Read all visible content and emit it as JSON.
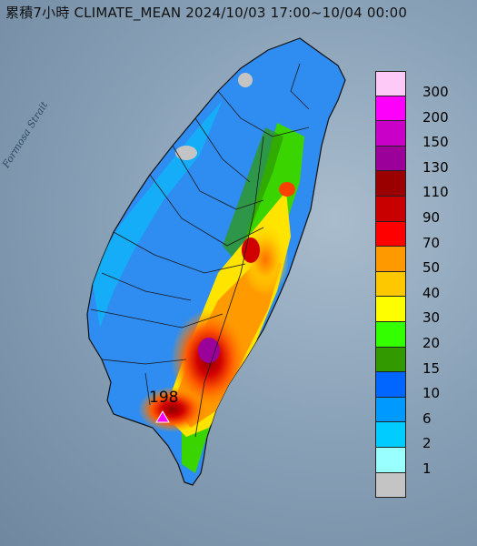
{
  "map": {
    "title": "累積7小時 CLIMATE_MEAN 2024/10/03 17:00~10/04 00:00",
    "strait_label": "Formosa Strait",
    "max_value": "198"
  },
  "legend": {
    "levels": [
      {
        "label": "300",
        "color": "#fdcaf7"
      },
      {
        "label": "200",
        "color": "#fc00fc"
      },
      {
        "label": "150",
        "color": "#c800c8"
      },
      {
        "label": "130",
        "color": "#9b009b"
      },
      {
        "label": "110",
        "color": "#9a0000"
      },
      {
        "label": "90",
        "color": "#c90000"
      },
      {
        "label": "70",
        "color": "#fe0000"
      },
      {
        "label": "50",
        "color": "#fe9900"
      },
      {
        "label": "40",
        "color": "#fec800"
      },
      {
        "label": "30",
        "color": "#fefe00"
      },
      {
        "label": "20",
        "color": "#33ff00"
      },
      {
        "label": "15",
        "color": "#339900"
      },
      {
        "label": "10",
        "color": "#0066ff"
      },
      {
        "label": "6",
        "color": "#0099ff"
      },
      {
        "label": "2",
        "color": "#00ccff"
      },
      {
        "label": "1",
        "color": "#99ffff"
      },
      {
        "label": "",
        "color": "#c4c4c4"
      }
    ]
  }
}
